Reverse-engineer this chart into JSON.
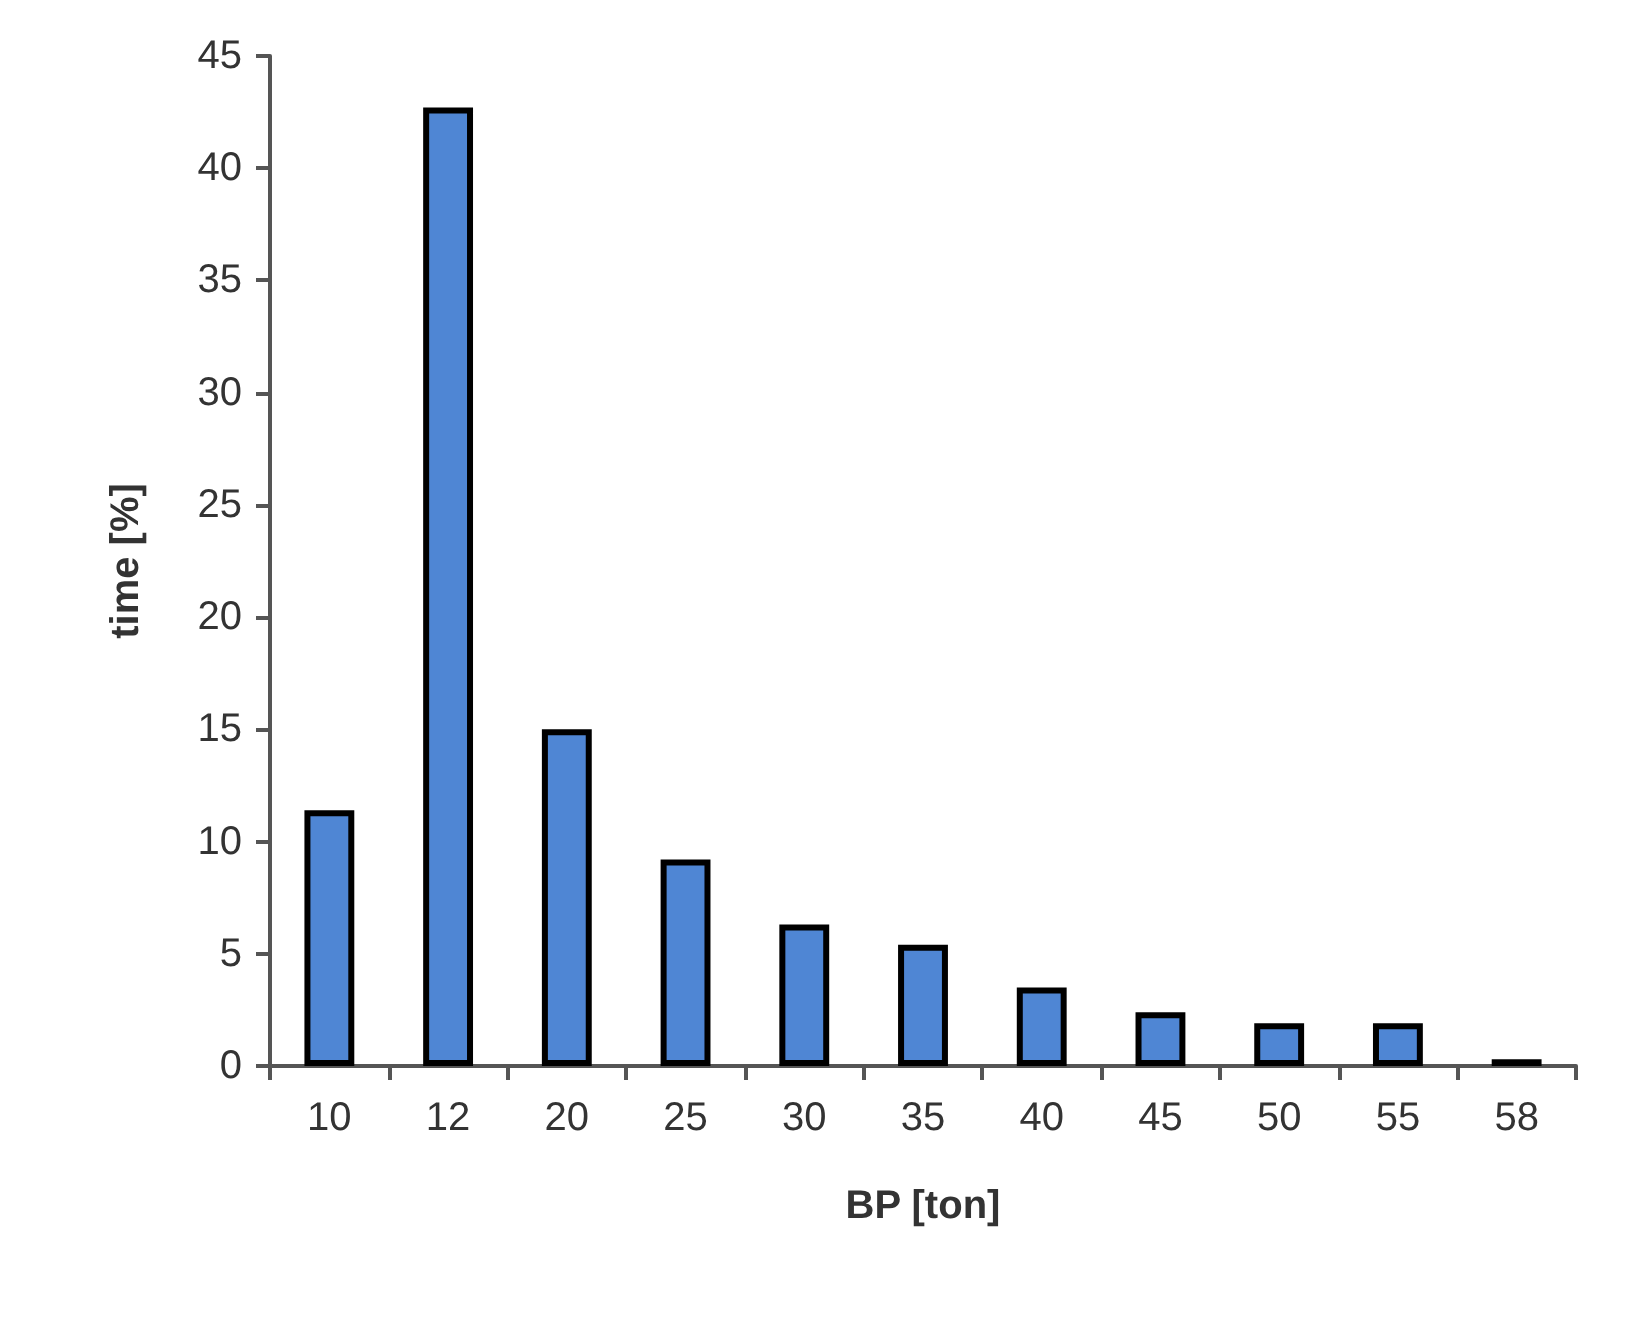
{
  "chart_data": {
    "type": "bar",
    "xlabel": "BP [ton]",
    "ylabel": "time [%]",
    "categories": [
      "10",
      "12",
      "20",
      "25",
      "30",
      "35",
      "40",
      "45",
      "50",
      "55",
      "58"
    ],
    "values": [
      11.4,
      42.7,
      15.0,
      9.2,
      6.3,
      5.4,
      3.5,
      2.4,
      1.9,
      1.9,
      0.3
    ],
    "color": "#4f86d4",
    "ylim": [
      0,
      45
    ],
    "yticks": [
      0,
      5,
      10,
      15,
      20,
      25,
      30,
      35,
      40,
      45
    ],
    "grid": false
  }
}
